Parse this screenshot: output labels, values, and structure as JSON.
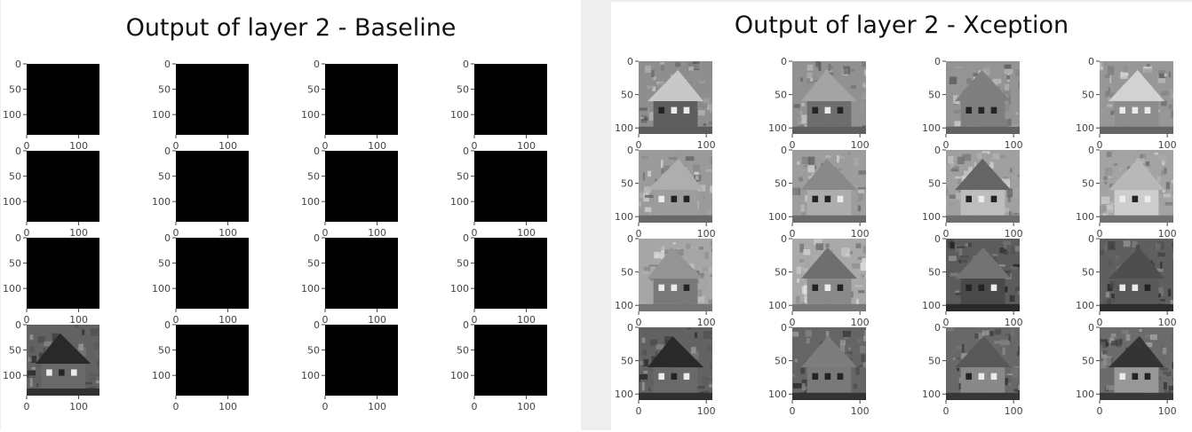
{
  "figures": {
    "left": {
      "title": "Output of layer 2 - Baseline"
    },
    "right": {
      "title": "Output of layer 2 - Xception"
    }
  },
  "chart_data": [
    {
      "type": "heatmap",
      "title": "Output of layer 2 - Baseline",
      "grid": {
        "rows": 4,
        "cols": 4
      },
      "x_ticks": [
        "0",
        "100"
      ],
      "y_ticks": [
        "0",
        "50",
        "100"
      ],
      "xlim": [
        0,
        140
      ],
      "ylim": [
        140,
        0
      ],
      "subplots": [
        {
          "row": 0,
          "col": 0,
          "content": "blank"
        },
        {
          "row": 0,
          "col": 1,
          "content": "blank"
        },
        {
          "row": 0,
          "col": 2,
          "content": "blank"
        },
        {
          "row": 0,
          "col": 3,
          "content": "blank"
        },
        {
          "row": 1,
          "col": 0,
          "content": "blank"
        },
        {
          "row": 1,
          "col": 1,
          "content": "blank"
        },
        {
          "row": 1,
          "col": 2,
          "content": "blank"
        },
        {
          "row": 1,
          "col": 3,
          "content": "blank"
        },
        {
          "row": 2,
          "col": 0,
          "content": "blank"
        },
        {
          "row": 2,
          "col": 1,
          "content": "blank"
        },
        {
          "row": 2,
          "col": 2,
          "content": "blank"
        },
        {
          "row": 2,
          "col": 3,
          "content": "blank"
        },
        {
          "row": 3,
          "col": 0,
          "content": "house"
        },
        {
          "row": 3,
          "col": 1,
          "content": "blank"
        },
        {
          "row": 3,
          "col": 2,
          "content": "blank"
        },
        {
          "row": 3,
          "col": 3,
          "content": "blank"
        }
      ]
    },
    {
      "type": "heatmap",
      "title": "Output of layer 2 - Xception",
      "grid": {
        "rows": 4,
        "cols": 4
      },
      "x_ticks": [
        "0",
        "100"
      ],
      "y_ticks": [
        "0",
        "50",
        "100"
      ],
      "xlim": [
        0,
        109
      ],
      "ylim": [
        109,
        0
      ],
      "subplots": [
        {
          "row": 0,
          "col": 0,
          "content": "house"
        },
        {
          "row": 0,
          "col": 1,
          "content": "house"
        },
        {
          "row": 0,
          "col": 2,
          "content": "house"
        },
        {
          "row": 0,
          "col": 3,
          "content": "house"
        },
        {
          "row": 1,
          "col": 0,
          "content": "house"
        },
        {
          "row": 1,
          "col": 1,
          "content": "house"
        },
        {
          "row": 1,
          "col": 2,
          "content": "house"
        },
        {
          "row": 1,
          "col": 3,
          "content": "house"
        },
        {
          "row": 2,
          "col": 0,
          "content": "house"
        },
        {
          "row": 2,
          "col": 1,
          "content": "house"
        },
        {
          "row": 2,
          "col": 2,
          "content": "house"
        },
        {
          "row": 2,
          "col": 3,
          "content": "house"
        },
        {
          "row": 3,
          "col": 0,
          "content": "house"
        },
        {
          "row": 3,
          "col": 1,
          "content": "house"
        },
        {
          "row": 3,
          "col": 2,
          "content": "house"
        },
        {
          "row": 3,
          "col": 3,
          "content": "house"
        }
      ]
    }
  ]
}
